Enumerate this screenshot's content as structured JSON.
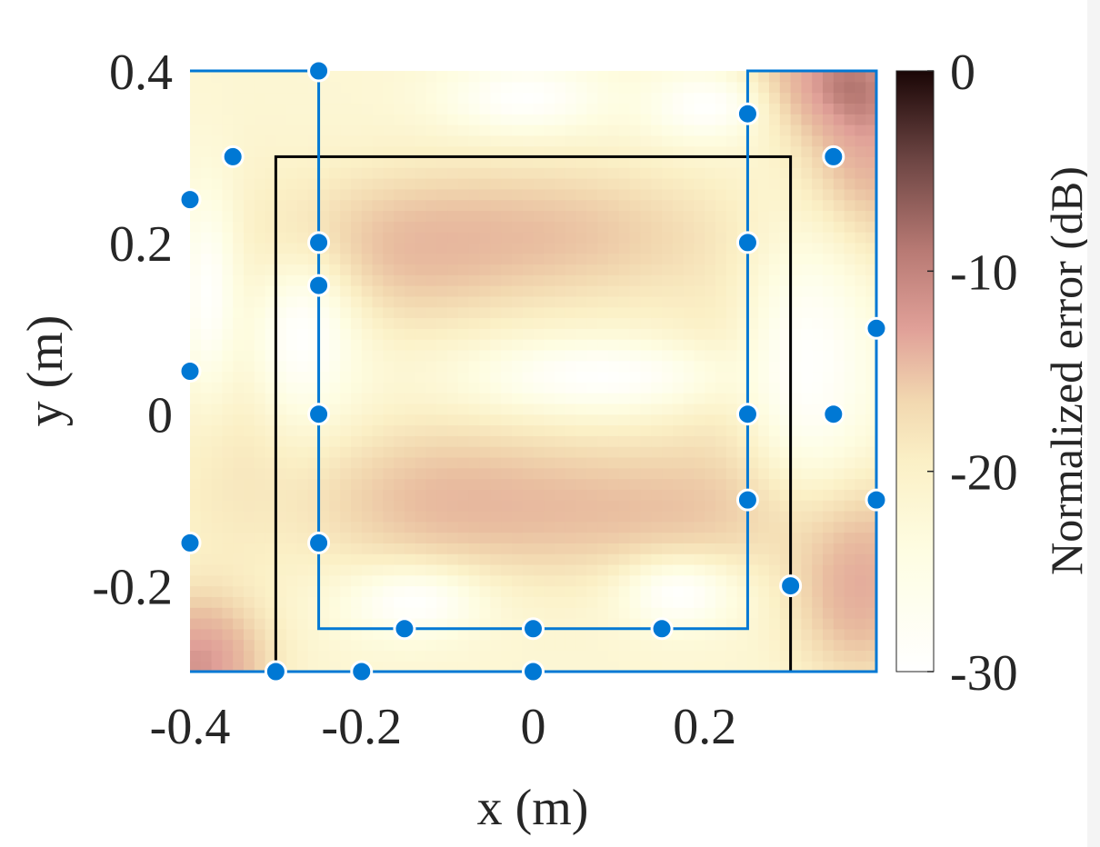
{
  "chart_data": {
    "type": "heatmap",
    "title": "",
    "xlabel": "x (m)",
    "ylabel": "y (m)",
    "xlim": [
      -0.4,
      0.4
    ],
    "ylim": [
      -0.3,
      0.4
    ],
    "x_ticks": [
      -0.4,
      -0.2,
      0,
      0.2
    ],
    "x_tick_labels": [
      "-0.4",
      "-0.2",
      "0",
      "0.2"
    ],
    "y_ticks": [
      0.4,
      0.2,
      0,
      -0.2
    ],
    "y_tick_labels": [
      "0.4",
      "0.2",
      "0",
      "-0.2"
    ],
    "colorbar": {
      "label": "Normalized error (dB)",
      "range": [
        -30,
        0
      ],
      "ticks": [
        0,
        -10,
        -20,
        -30
      ],
      "tick_labels": [
        "0",
        "-10",
        "-20",
        "-30"
      ]
    },
    "error_blobs_db": [
      {
        "x": 0.0,
        "y": 0.21,
        "sx": 0.15,
        "sy": 0.055,
        "db": -18.5
      },
      {
        "x": 0.1,
        "y": -0.11,
        "sx": 0.19,
        "sy": 0.055,
        "db": -18.5
      },
      {
        "x": -0.17,
        "y": 0.18,
        "sx": 0.09,
        "sy": 0.06,
        "db": -21
      },
      {
        "x": -0.12,
        "y": -0.09,
        "sx": 0.1,
        "sy": 0.06,
        "db": -21
      },
      {
        "x": 0.39,
        "y": 0.33,
        "sx": 0.05,
        "sy": 0.09,
        "db": -14
      },
      {
        "x": 0.34,
        "y": 0.39,
        "sx": 0.06,
        "sy": 0.04,
        "db": -16
      },
      {
        "x": 0.38,
        "y": -0.2,
        "sx": 0.05,
        "sy": 0.07,
        "db": -15
      },
      {
        "x": -0.39,
        "y": -0.29,
        "sx": 0.05,
        "sy": 0.05,
        "db": -12
      },
      {
        "x": -0.36,
        "y": 0.05,
        "sx": 0.05,
        "sy": 0.14,
        "db": -22
      },
      {
        "x": 0.25,
        "y": 0.04,
        "sx": 0.06,
        "sy": 0.1,
        "db": -22
      }
    ],
    "quiet_zones_db": [
      {
        "x": 0.08,
        "y": 0.045,
        "sx": 0.11,
        "sy": 0.03,
        "db": -30
      },
      {
        "x": -0.27,
        "y": 0.09,
        "sx": 0.05,
        "sy": 0.07,
        "db": -30
      },
      {
        "x": -0.14,
        "y": -0.22,
        "sx": 0.06,
        "sy": 0.03,
        "db": -30
      },
      {
        "x": -0.01,
        "y": 0.37,
        "sx": 0.07,
        "sy": 0.03,
        "db": -30
      },
      {
        "x": 0.2,
        "y": 0.36,
        "sx": 0.05,
        "sy": 0.03,
        "db": -30
      },
      {
        "x": 0.32,
        "y": 0.06,
        "sx": 0.06,
        "sy": 0.12,
        "db": -30
      },
      {
        "x": 0.17,
        "y": -0.21,
        "sx": 0.05,
        "sy": 0.03,
        "db": -30
      },
      {
        "x": -0.38,
        "y": 0.14,
        "sx": 0.03,
        "sy": 0.1,
        "db": -30
      }
    ],
    "black_rectangle": {
      "x": [
        -0.3,
        0.3
      ],
      "y": [
        -0.3,
        0.3
      ]
    },
    "blue_outline": [
      [
        -0.4,
        0.4
      ],
      [
        -0.25,
        0.4
      ],
      [
        -0.25,
        -0.25
      ],
      [
        0.25,
        -0.25
      ],
      [
        0.25,
        0.4
      ],
      [
        0.4,
        0.4
      ],
      [
        0.4,
        -0.3
      ],
      [
        -0.4,
        -0.3
      ]
    ],
    "points": [
      {
        "x": -0.25,
        "y": 0.4
      },
      {
        "x": -0.35,
        "y": 0.3
      },
      {
        "x": -0.4,
        "y": 0.25
      },
      {
        "x": -0.25,
        "y": 0.2
      },
      {
        "x": -0.25,
        "y": 0.15
      },
      {
        "x": -0.4,
        "y": 0.05
      },
      {
        "x": -0.25,
        "y": 0.0
      },
      {
        "x": -0.4,
        "y": -0.15
      },
      {
        "x": -0.25,
        "y": -0.15
      },
      {
        "x": -0.3,
        "y": -0.3
      },
      {
        "x": -0.2,
        "y": -0.3
      },
      {
        "x": -0.15,
        "y": -0.25
      },
      {
        "x": 0.0,
        "y": -0.25
      },
      {
        "x": 0.0,
        "y": -0.3
      },
      {
        "x": 0.15,
        "y": -0.25
      },
      {
        "x": 0.25,
        "y": 0.35
      },
      {
        "x": 0.25,
        "y": 0.2
      },
      {
        "x": 0.25,
        "y": 0.0
      },
      {
        "x": 0.25,
        "y": -0.1
      },
      {
        "x": 0.35,
        "y": 0.3
      },
      {
        "x": 0.35,
        "y": 0.0
      },
      {
        "x": 0.4,
        "y": 0.1
      },
      {
        "x": 0.4,
        "y": -0.1
      },
      {
        "x": 0.3,
        "y": -0.2
      }
    ],
    "colors": {
      "points": "#0078d4",
      "outline": "#0078d4",
      "rectangle": "#000000",
      "text": "#262626"
    }
  }
}
